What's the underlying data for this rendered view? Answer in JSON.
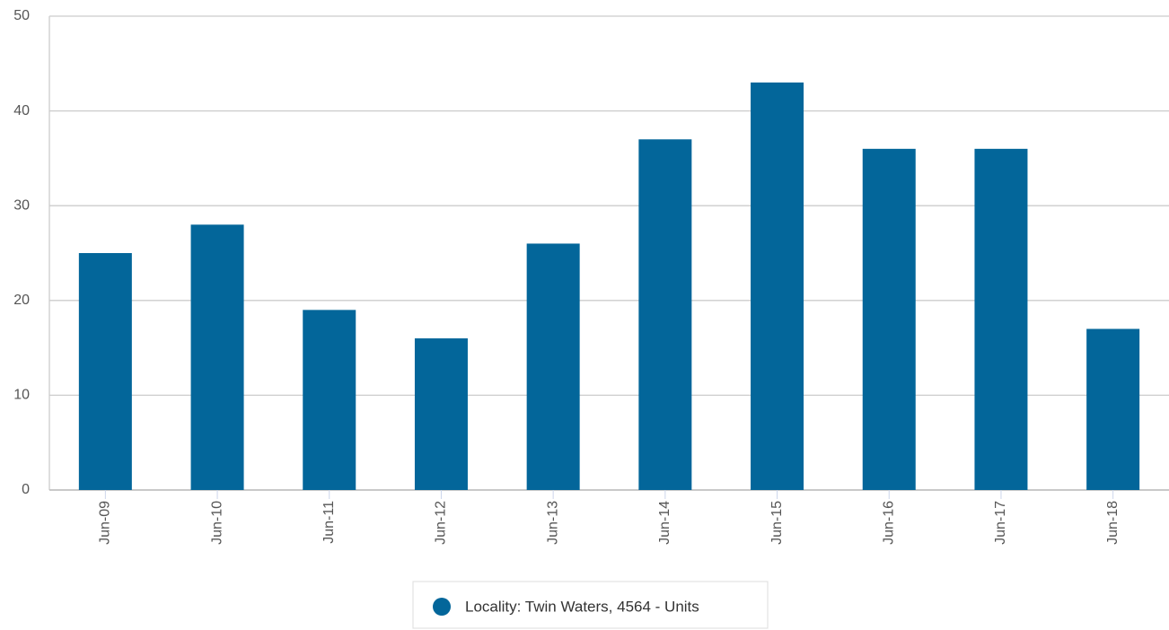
{
  "chart_data": {
    "type": "bar",
    "categories": [
      "Jun-09",
      "Jun-10",
      "Jun-11",
      "Jun-12",
      "Jun-13",
      "Jun-14",
      "Jun-15",
      "Jun-16",
      "Jun-17",
      "Jun-18"
    ],
    "series": [
      {
        "name": "Locality: Twin Waters, 4564 - Units",
        "color": "#03669a",
        "values": [
          25,
          28,
          19,
          16,
          26,
          37,
          43,
          36,
          36,
          17
        ]
      }
    ],
    "ylim": [
      0,
      50
    ],
    "yticks": [
      0,
      10,
      20,
      30,
      40,
      50
    ],
    "grid": true,
    "legend": "bottom"
  }
}
